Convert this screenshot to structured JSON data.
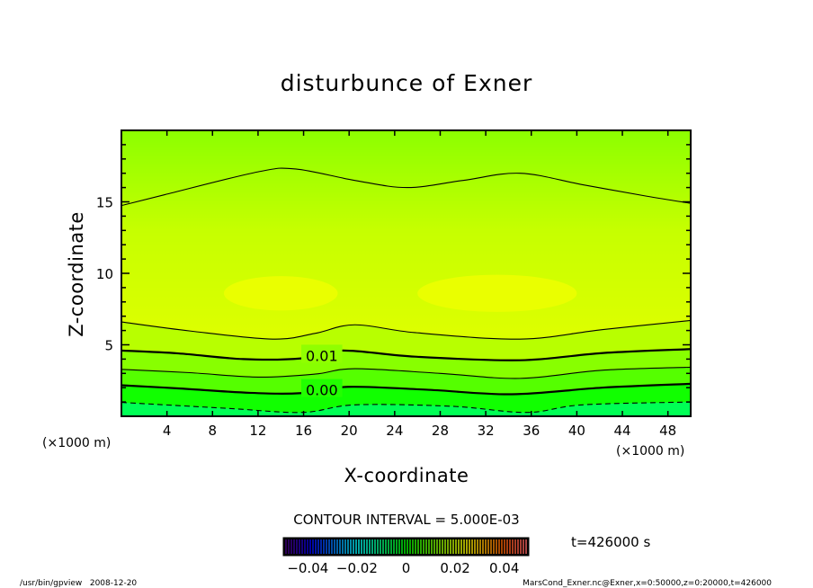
{
  "chart_data": {
    "type": "contour",
    "title": "disturbunce of Exner",
    "xlabel": "X-coordinate",
    "ylabel": "Z-coordinate",
    "x_unit_label": "(×1000 m)",
    "y_unit_label": "(×1000 m)",
    "xlim": [
      0,
      50
    ],
    "ylim": [
      0,
      20
    ],
    "x_ticks": [
      4,
      8,
      12,
      16,
      20,
      24,
      28,
      32,
      36,
      40,
      44,
      48
    ],
    "y_ticks": [
      5,
      10,
      15
    ],
    "contour_interval_text": "CONTOUR INTERVAL = 5.000E-03",
    "contours": [
      {
        "level": 0.02,
        "style": "thin",
        "points": [
          [
            0,
            14.74
          ],
          [
            3.8,
            15.5
          ],
          [
            12,
            17.1
          ],
          [
            15.3,
            17.3
          ],
          [
            20.5,
            16.5
          ],
          [
            25.1,
            16.0
          ],
          [
            30,
            16.5
          ],
          [
            35,
            17.0
          ],
          [
            40.5,
            16.2
          ],
          [
            46.1,
            15.4
          ],
          [
            50,
            14.9
          ]
        ]
      },
      {
        "level": 0.015,
        "style": "thin",
        "points": [
          [
            0,
            6.6
          ],
          [
            6.1,
            5.96
          ],
          [
            13.3,
            5.4
          ],
          [
            17,
            5.8
          ],
          [
            20.5,
            6.4
          ],
          [
            25.8,
            5.85
          ],
          [
            35,
            5.4
          ],
          [
            42.2,
            6.06
          ],
          [
            50,
            6.7
          ]
        ]
      },
      {
        "level": 0.01,
        "style": "thick",
        "label": "0.01",
        "label_pos": [
          17.6,
          4.25
        ],
        "gap": [
          15.8,
          19.4
        ],
        "points": [
          [
            0,
            4.6
          ],
          [
            5,
            4.4
          ],
          [
            10.7,
            4.0
          ],
          [
            15.8,
            4.05
          ],
          [
            19.4,
            4.6
          ],
          [
            25.8,
            4.17
          ],
          [
            35,
            3.92
          ],
          [
            42.2,
            4.42
          ],
          [
            50,
            4.7
          ]
        ]
      },
      {
        "level": 0.005,
        "style": "thin",
        "points": [
          [
            0,
            3.28
          ],
          [
            6,
            3.05
          ],
          [
            12,
            2.74
          ],
          [
            17,
            2.95
          ],
          [
            20.5,
            3.33
          ],
          [
            28,
            3.0
          ],
          [
            35,
            2.65
          ],
          [
            42.2,
            3.22
          ],
          [
            50,
            3.43
          ]
        ]
      },
      {
        "level": 0.0,
        "style": "thick",
        "label": "0.00",
        "label_pos": [
          17.6,
          1.85
        ],
        "gap": [
          15.8,
          19.4
        ],
        "points": [
          [
            0,
            2.17
          ],
          [
            5,
            1.95
          ],
          [
            11.3,
            1.64
          ],
          [
            15.8,
            1.62
          ],
          [
            19.9,
            2.06
          ],
          [
            27,
            1.85
          ],
          [
            34.3,
            1.54
          ],
          [
            42.2,
            2.0
          ],
          [
            50,
            2.27
          ]
        ]
      },
      {
        "level": -0.005,
        "style": "dashed",
        "points": [
          [
            0,
            0.97
          ],
          [
            9.4,
            0.55
          ],
          [
            15.9,
            0.27
          ],
          [
            20.5,
            0.8
          ],
          [
            29,
            0.7
          ],
          [
            35.6,
            0.27
          ],
          [
            40.5,
            0.8
          ],
          [
            50,
            1.0
          ]
        ]
      }
    ],
    "maxima": [
      {
        "center": [
          14,
          8.6
        ],
        "radius": [
          5,
          1.2
        ]
      },
      {
        "center": [
          33,
          8.6
        ],
        "radius": [
          7,
          1.3
        ]
      }
    ],
    "colorbar": {
      "range": [
        -0.05,
        0.05
      ],
      "ticks": [
        -0.04,
        -0.02,
        0,
        0.02,
        0.04
      ],
      "tick_labels": [
        "−0.04",
        "−0.02",
        "0",
        "0.02",
        "0.04"
      ]
    },
    "time_label": "t=426000 s",
    "colors": {
      "top": "#88ff00",
      "mid": "#d8ff00",
      "maxima": "#eaff00",
      "band_below_0.015": "#b8ff00",
      "band_below_0.01": "#88ff00",
      "band_below_0.005": "#55ff00",
      "band_below_0.00": "#11ff00",
      "band_below_-0.005": "#00ff55"
    }
  },
  "footer": {
    "left": "/usr/bin/gpview   2008-12-20",
    "right": "MarsCond_Exner.nc@Exner,x=0:50000,z=0:20000,t=426000"
  }
}
